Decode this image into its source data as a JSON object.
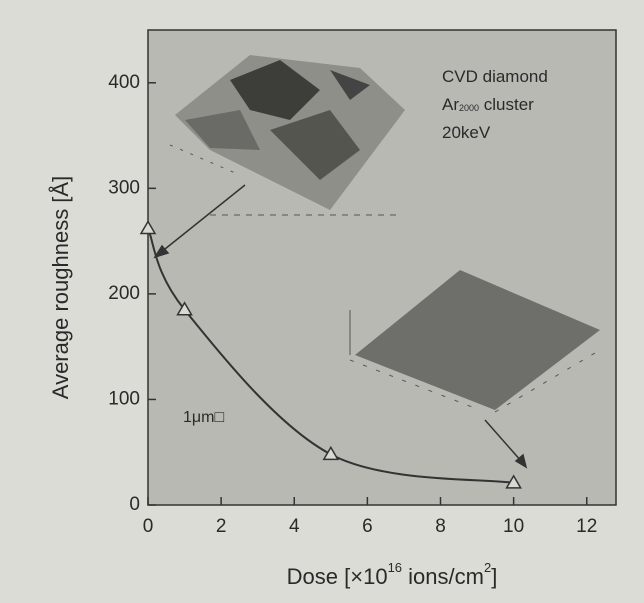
{
  "chart_data": {
    "type": "line",
    "ylabel": "Average roughness [Å]",
    "xlabel_parts": [
      "Dose [×10",
      "16",
      " ions/cm",
      "2",
      "]"
    ],
    "x": [
      0,
      1,
      5,
      10
    ],
    "series": [
      {
        "color": "#333333",
        "values": [
          262,
          185,
          48,
          21
        ]
      }
    ],
    "xlim": [
      0,
      12.8
    ],
    "xticks": [
      0,
      2,
      4,
      6,
      8,
      10,
      12
    ],
    "ylim": [
      0,
      450
    ],
    "yticks": [
      0,
      100,
      200,
      300,
      400
    ],
    "annotation_lines": [
      [
        "CVD diamond"
      ],
      [
        "Ar",
        "2000",
        " cluster"
      ],
      [
        "20keV"
      ]
    ],
    "scale_label": "1μm□"
  }
}
